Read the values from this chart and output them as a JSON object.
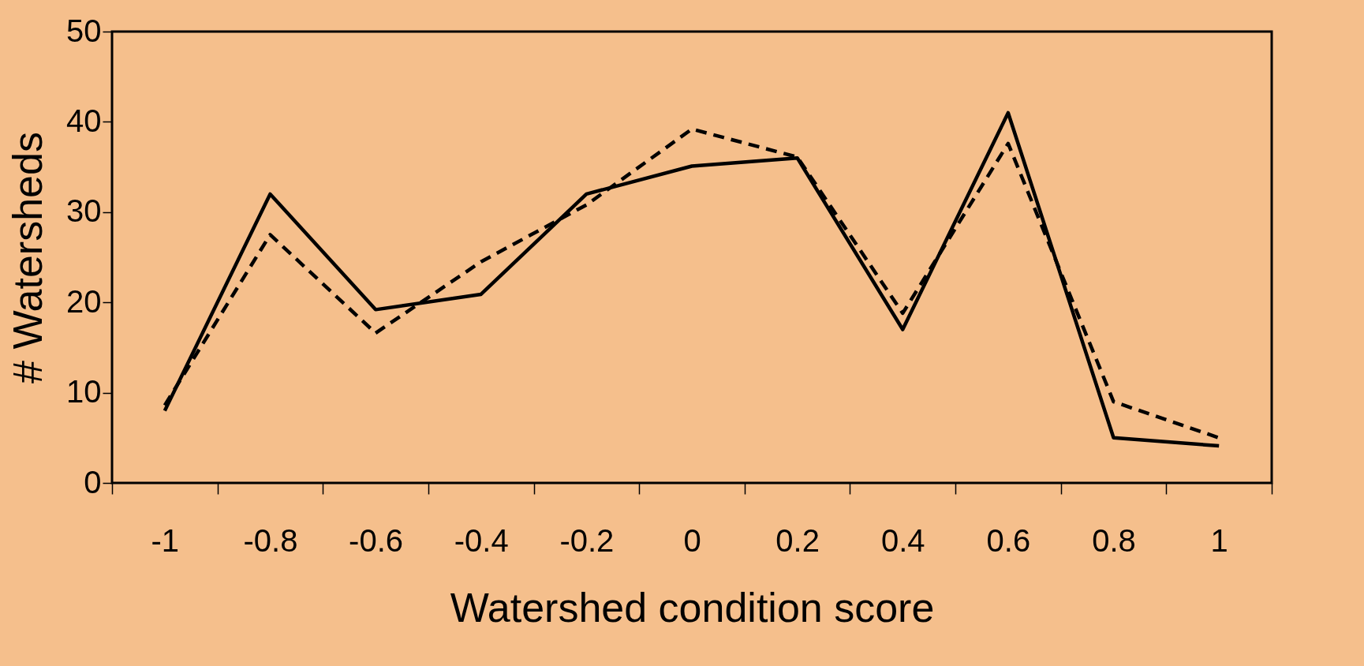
{
  "chart_data": {
    "type": "line",
    "xlabel": "Watershed condition score",
    "ylabel": "# Watersheds",
    "categories": [
      "-1",
      "-0.8",
      "-0.6",
      "-0.4",
      "-0.2",
      "0",
      "0.2",
      "0.4",
      "0.6",
      "0.8",
      "1"
    ],
    "series": [
      {
        "color": "#000000",
        "line_style": "solid",
        "values": [
          8,
          32,
          19.2,
          20.9,
          32,
          35.1,
          36,
          17,
          41,
          5,
          4.1
        ]
      },
      {
        "color": "#000000",
        "line_style": "dashed",
        "values": [
          8.6,
          27.5,
          16.6,
          24.5,
          30.8,
          39.2,
          36.1,
          18.8,
          37.6,
          9,
          5
        ]
      }
    ],
    "ylim": [
      0,
      50
    ],
    "yticks": [
      0,
      10,
      20,
      30,
      40,
      50
    ],
    "grid": false,
    "marker": "none"
  }
}
